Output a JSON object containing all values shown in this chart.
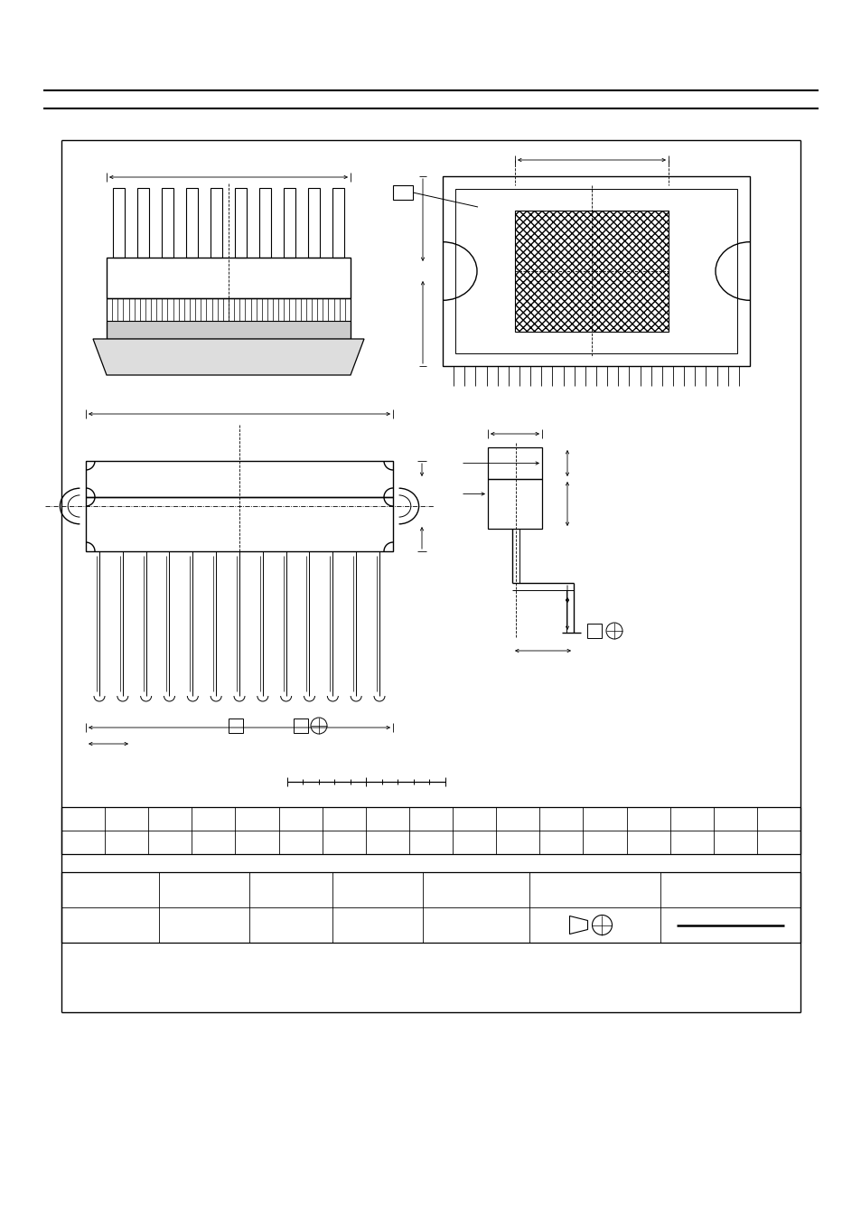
{
  "bg_color": "#ffffff",
  "line_color": "#000000",
  "fig_width": 9.54,
  "fig_height": 13.51,
  "dpi": 100
}
